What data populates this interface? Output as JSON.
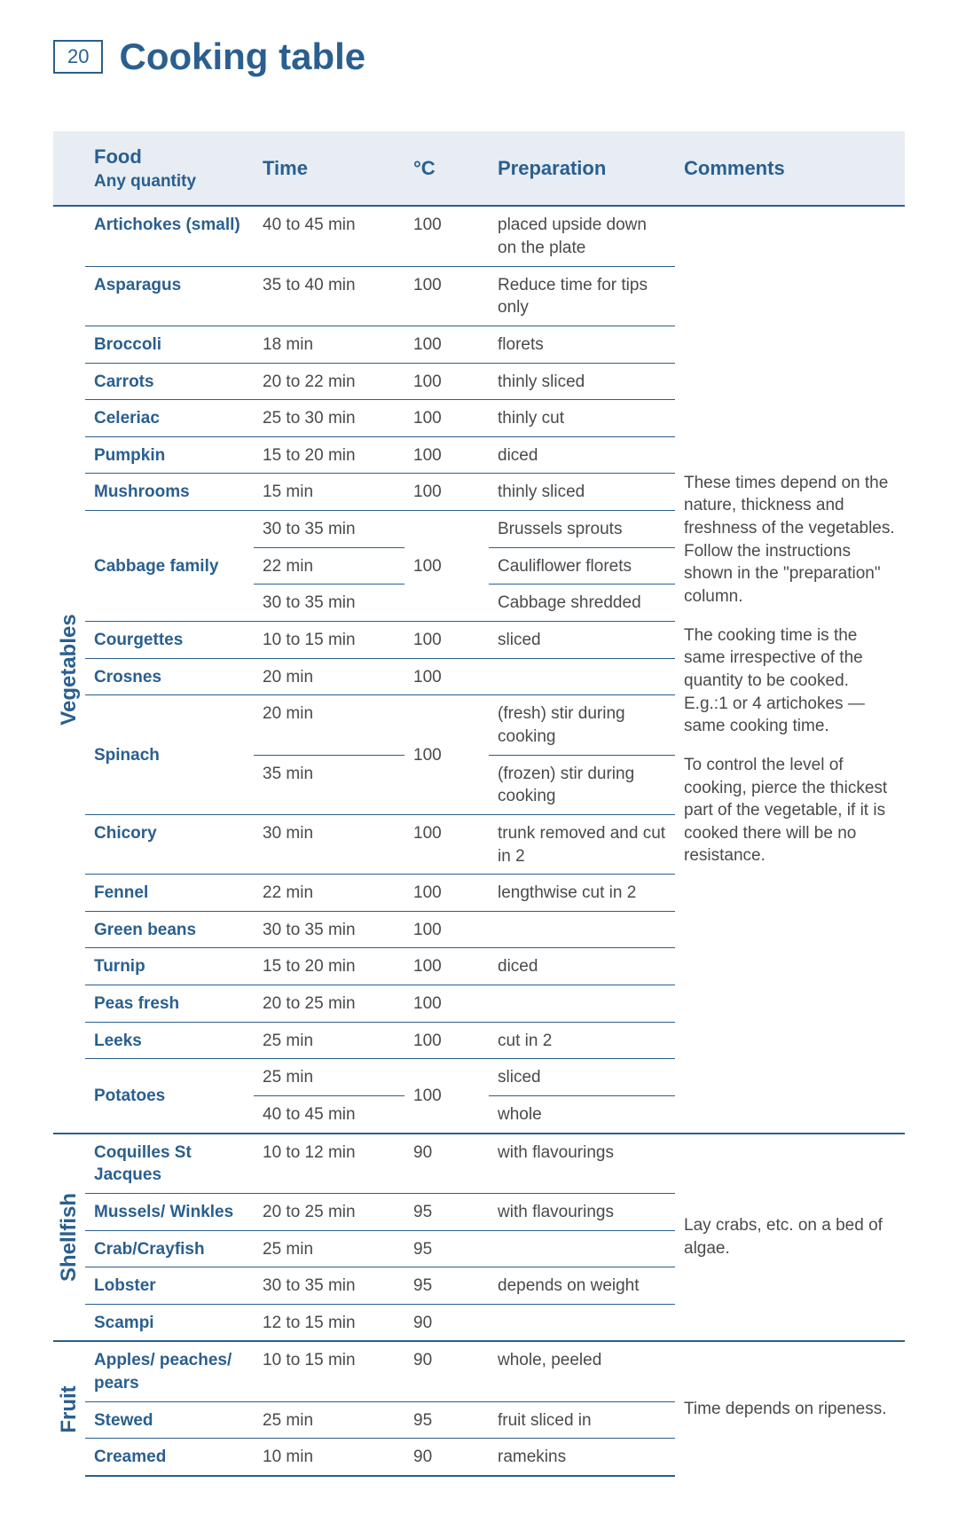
{
  "page_number": "20",
  "title": "Cooking table",
  "headers": {
    "food_main": "Food",
    "food_sub": "Any quantity",
    "time": "Time",
    "temp": "°C",
    "prep": "Preparation",
    "comments": "Comments"
  },
  "sections": [
    {
      "category": "Vegetables",
      "comments_html": "These times depend on the nature, thickness and freshness of the vegetables. Follow the instructions shown in the \"preparation\" column.|The cooking time is the same irrespective of the quantity to be cooked. E.g.:1 or 4 artichokes — same cooking time.|To control the level of cooking, pierce the thickest part of the vegetable, if it is cooked there will be no resistance.",
      "rows": [
        {
          "food": "Artichokes (small)",
          "time": "40 to 45 min",
          "temp": "100",
          "prep": "placed upside down on the plate"
        },
        {
          "food": "Asparagus",
          "time": "35 to 40 min",
          "temp": "100",
          "prep": "Reduce time for tips only"
        },
        {
          "food": "Broccoli",
          "time": "18 min",
          "temp": "100",
          "prep": "florets"
        },
        {
          "food": "Carrots",
          "time": "20 to 22 min",
          "temp": "100",
          "prep": "thinly sliced"
        },
        {
          "food": "Celeriac",
          "time": "25 to 30 min",
          "temp": "100",
          "prep": "thinly cut"
        },
        {
          "food": "Pumpkin",
          "time": "15 to 20 min",
          "temp": "100",
          "prep": "diced"
        },
        {
          "food": "Mushrooms",
          "time": "15 min",
          "temp": "100",
          "prep": "thinly sliced"
        },
        {
          "food": "Cabbage family",
          "food_rowspan": 3,
          "time": "30 to 35 min",
          "temp": "100",
          "temp_rowspan": 3,
          "prep": "Brussels sprouts"
        },
        {
          "time": "22 min",
          "prep": "Cauliflower florets"
        },
        {
          "time": "30 to 35 min",
          "prep": "Cabbage shredded"
        },
        {
          "food": "Courgettes",
          "time": "10 to 15 min",
          "temp": "100",
          "prep": "sliced"
        },
        {
          "food": "Crosnes",
          "time": "20 min",
          "temp": "100",
          "prep": ""
        },
        {
          "food": "Spinach",
          "food_rowspan": 2,
          "time": "20 min",
          "temp": "100",
          "temp_rowspan": 2,
          "prep": "(fresh) stir during cooking"
        },
        {
          "time": "35 min",
          "prep": "(frozen) stir during cooking"
        },
        {
          "food": "Chicory",
          "time": "30 min",
          "temp": "100",
          "prep": "trunk removed and cut in 2"
        },
        {
          "food": "Fennel",
          "time": "22 min",
          "temp": "100",
          "prep": "lengthwise cut in 2"
        },
        {
          "food": "Green beans",
          "time": "30 to 35 min",
          "temp": "100",
          "prep": ""
        },
        {
          "food": "Turnip",
          "time": "15 to 20 min",
          "temp": "100",
          "prep": "diced"
        },
        {
          "food": "Peas fresh",
          "time": "20 to 25 min",
          "temp": "100",
          "prep": ""
        },
        {
          "food": "Leeks",
          "time": "25 min",
          "temp": "100",
          "prep": "cut in 2"
        },
        {
          "food": "Potatoes",
          "food_rowspan": 2,
          "time": "25 min",
          "temp": "100",
          "temp_rowspan": 2,
          "prep": "sliced"
        },
        {
          "time": "40 to 45 min",
          "prep": "whole"
        }
      ]
    },
    {
      "category": "Shellfish",
      "comments_html": "Lay crabs, etc. on a bed of algae.",
      "rows": [
        {
          "food": "Coquilles St Jacques",
          "time": "10 to 12 min",
          "temp": "90",
          "prep": "with flavourings"
        },
        {
          "food": "Mussels/ Winkles",
          "time": "20 to 25 min",
          "temp": "95",
          "prep": "with flavourings"
        },
        {
          "food": "Crab/Crayfish",
          "time": "25 min",
          "temp": "95",
          "prep": ""
        },
        {
          "food": "Lobster",
          "time": "30 to 35 min",
          "temp": "95",
          "prep": "depends on weight"
        },
        {
          "food": "Scampi",
          "time": "12 to 15 min",
          "temp": "90",
          "prep": ""
        }
      ]
    },
    {
      "category": "Fruit",
      "comments_html": "Time depends on ripeness.",
      "rows": [
        {
          "food": "Apples/ peaches/ pears",
          "time": "10 to 15 min",
          "temp": "90",
          "prep": "whole, peeled"
        },
        {
          "food": "Stewed",
          "time": "25 min",
          "temp": "95",
          "prep": "fruit sliced in"
        },
        {
          "food": "Creamed",
          "time": "10 min",
          "temp": "90",
          "prep": "ramekins"
        }
      ]
    }
  ],
  "colors": {
    "accent": "#2a5f8f",
    "header_bg": "#e7edf3",
    "body_text": "#4a4a4a"
  },
  "typography": {
    "title_fontsize_pt": 32,
    "header_fontsize_pt": 17,
    "cell_fontsize_pt": 14,
    "category_fontsize_pt": 18
  }
}
